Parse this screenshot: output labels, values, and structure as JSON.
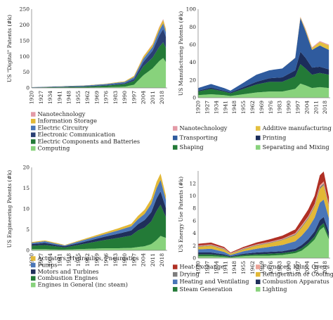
{
  "colors": {
    "nano": "#e39aa6",
    "storage": "#e2b836",
    "circuitry": "#4a76b8",
    "comm": "#2a3f73",
    "components": "#237a37",
    "computing": "#88d27c",
    "additive": "#e3bf3e",
    "transporting": "#2f5b9e",
    "printing": "#1b2d5a",
    "shaping": "#237a37",
    "separating": "#88d27c",
    "actuators": "#e2b836",
    "pumps": "#4a76b8",
    "motors": "#1f2f5a",
    "combustion": "#237a37",
    "engines": "#88d27c",
    "heat_exchange": "#b03024",
    "furnaces": "#eba397",
    "drying": "#7d7d7d",
    "refrigeration": "#e2b836",
    "heating": "#4a76b8",
    "combustion_app": "#1f2f5a",
    "steam": "#237a37",
    "lighting": "#88d27c"
  },
  "chart_data": [
    {
      "type": "area",
      "stacked": true,
      "ylabel": "US \"Digital\" Patents (#k)",
      "ylim": [
        0,
        250
      ],
      "yticks": [
        0,
        50,
        100,
        150,
        200,
        250
      ],
      "xlim": [
        1920,
        2022
      ],
      "xticks": [
        "1920",
        "1927",
        "1934",
        "1941",
        "1948",
        "1955",
        "1962",
        "1969",
        "1976",
        "1983",
        "1990",
        "1997",
        "2004",
        "2011",
        "2018"
      ],
      "legend_columns": 1,
      "series": [
        {
          "name": "Computing",
          "color_key": "computing",
          "x": [
            1920,
            1960,
            1975,
            1990,
            1997,
            2004,
            2011,
            2016,
            2019,
            2021
          ],
          "values": [
            0.3,
            1,
            2,
            4,
            10,
            40,
            62,
            85,
            95,
            82
          ]
        },
        {
          "name": "Electric Components and Batteries",
          "color_key": "components",
          "x": [
            1920,
            1960,
            1975,
            1990,
            1997,
            2004,
            2011,
            2016,
            2019,
            2021
          ],
          "values": [
            1,
            3,
            5,
            8,
            12,
            28,
            34,
            45,
            50,
            44
          ]
        },
        {
          "name": "Electronic Communication",
          "color_key": "comm",
          "x": [
            1920,
            1960,
            1975,
            1990,
            1997,
            2004,
            2011,
            2016,
            2019,
            2021
          ],
          "values": [
            0.5,
            1.5,
            2,
            3,
            6,
            14,
            22,
            36,
            42,
            36
          ]
        },
        {
          "name": "Electric Circuitry",
          "color_key": "circuitry",
          "x": [
            1920,
            1960,
            1975,
            1990,
            1997,
            2004,
            2011,
            2016,
            2019,
            2021
          ],
          "values": [
            0.5,
            2,
            3,
            4,
            6,
            10,
            12,
            16,
            18,
            15
          ]
        },
        {
          "name": "Information Storage",
          "color_key": "storage",
          "x": [
            1920,
            1960,
            1975,
            1990,
            1997,
            2004,
            2011,
            2016,
            2019,
            2021
          ],
          "values": [
            0.1,
            0.5,
            1,
            2,
            4,
            7,
            8,
            10,
            11,
            9
          ]
        },
        {
          "name": "Nanotechnology",
          "color_key": "nano",
          "x": [
            1920,
            1960,
            1975,
            1990,
            1997,
            2004,
            2011,
            2016,
            2019,
            2021
          ],
          "values": [
            0,
            0,
            0,
            0,
            0.2,
            1,
            1.5,
            2,
            2.5,
            2
          ]
        }
      ]
    },
    {
      "type": "area",
      "stacked": true,
      "ylabel": "US Manufacturing Patents (#k)",
      "ylim": [
        0,
        100
      ],
      "yticks": [
        0,
        20,
        40,
        60,
        80,
        100
      ],
      "xlim": [
        1920,
        2022
      ],
      "xticks": [
        "1920",
        "1927",
        "1934",
        "1941",
        "1948",
        "1955",
        "1962",
        "1969",
        "1976",
        "1983",
        "1990",
        "1997",
        "2004",
        "2011",
        "2018"
      ],
      "legend_columns": 2,
      "series": [
        {
          "name": "Separating and Mixing",
          "color_key": "separating",
          "x": [
            1920,
            1930,
            1940,
            1945,
            1955,
            1965,
            1975,
            1985,
            1995,
            1999,
            2003,
            2008,
            2014,
            2021
          ],
          "values": [
            3,
            4,
            3,
            2,
            4,
            6,
            7,
            7,
            10,
            16,
            14,
            11,
            12,
            11
          ]
        },
        {
          "name": "Shaping",
          "color_key": "shaping",
          "x": [
            1920,
            1930,
            1940,
            1945,
            1955,
            1965,
            1975,
            1985,
            1995,
            1999,
            2003,
            2008,
            2014,
            2021
          ],
          "values": [
            4,
            6,
            4,
            3,
            6,
            9,
            11,
            11,
            14,
            22,
            19,
            15,
            16,
            15
          ]
        },
        {
          "name": "Printing",
          "color_key": "printing",
          "x": [
            1920,
            1930,
            1940,
            1945,
            1955,
            1965,
            1975,
            1985,
            1995,
            1999,
            2003,
            2008,
            2014,
            2021
          ],
          "values": [
            1,
            1.5,
            1,
            1,
            2,
            3,
            4,
            5,
            7,
            14,
            12,
            8,
            7,
            6
          ]
        },
        {
          "name": "Transporting",
          "color_key": "transporting",
          "x": [
            1920,
            1930,
            1940,
            1945,
            1955,
            1965,
            1975,
            1985,
            1995,
            1999,
            2003,
            2008,
            2014,
            2021
          ],
          "values": [
            3,
            4,
            3,
            2,
            5,
            8,
            9,
            10,
            14,
            38,
            30,
            20,
            24,
            22
          ]
        },
        {
          "name": "Additive manufacturing",
          "color_key": "additive",
          "x": [
            1920,
            1930,
            1940,
            1945,
            1955,
            1965,
            1975,
            1985,
            1995,
            1999,
            2003,
            2008,
            2014,
            2021
          ],
          "values": [
            0,
            0,
            0,
            0,
            0,
            0,
            0,
            0,
            0.2,
            1,
            2,
            2,
            4,
            5
          ]
        },
        {
          "name": "Nanotechnology",
          "color_key": "nano",
          "x": [
            1920,
            1930,
            1940,
            1945,
            1955,
            1965,
            1975,
            1985,
            1995,
            1999,
            2003,
            2008,
            2014,
            2021
          ],
          "values": [
            0,
            0,
            0,
            0,
            0,
            0,
            0,
            0,
            0.1,
            0.5,
            1,
            1,
            1,
            1
          ]
        }
      ]
    },
    {
      "type": "area",
      "stacked": true,
      "ylabel": "US Engineering Patents (#k)",
      "ylim": [
        0,
        20
      ],
      "yticks": [
        0,
        5,
        10,
        15,
        20
      ],
      "xlim": [
        1920,
        2022
      ],
      "xticks": [
        "1920",
        "1927",
        "1934",
        "1941",
        "1948",
        "1955",
        "1962",
        "1969",
        "1976",
        "1983",
        "1990",
        "1997",
        "2004",
        "2011",
        "2018"
      ],
      "legend_columns": 1,
      "series": [
        {
          "name": "Engines in General (inc steam)",
          "color_key": "engines",
          "x": [
            1920,
            1930,
            1940,
            1945,
            1955,
            1965,
            1975,
            1985,
            1995,
            2000,
            2005,
            2010,
            2014,
            2017,
            2021
          ],
          "values": [
            0.3,
            0.3,
            0.2,
            0.2,
            0.3,
            0.4,
            0.5,
            0.5,
            0.6,
            0.8,
            1,
            1.5,
            2.5,
            3.5,
            3
          ]
        },
        {
          "name": "Combustion Engines",
          "color_key": "combustion",
          "x": [
            1920,
            1930,
            1940,
            1945,
            1955,
            1965,
            1975,
            1985,
            1995,
            2000,
            2005,
            2010,
            2014,
            2017,
            2021
          ],
          "values": [
            0.8,
            1,
            0.7,
            0.5,
            1,
            1.5,
            2,
            2.5,
            3,
            4,
            4.5,
            5.5,
            7,
            7.5,
            5
          ]
        },
        {
          "name": "Motors and Turbines",
          "color_key": "motors",
          "x": [
            1920,
            1930,
            1940,
            1945,
            1955,
            1965,
            1975,
            1985,
            1995,
            2000,
            2005,
            2010,
            2014,
            2017,
            2021
          ],
          "values": [
            0.4,
            0.5,
            0.3,
            0.3,
            0.4,
            0.6,
            0.8,
            1,
            1.2,
            1.5,
            1.8,
            2.2,
            3,
            3.2,
            2.2
          ]
        },
        {
          "name": "Pumps",
          "color_key": "pumps",
          "x": [
            1920,
            1930,
            1940,
            1945,
            1955,
            1965,
            1975,
            1985,
            1995,
            2000,
            2005,
            2010,
            2014,
            2017,
            2021
          ],
          "values": [
            0.3,
            0.4,
            0.3,
            0.2,
            0.4,
            0.5,
            0.6,
            0.8,
            1,
            1.2,
            1.5,
            2,
            2.5,
            2.8,
            2
          ]
        },
        {
          "name": "Actuators, Hydraulics, Pneumatics",
          "color_key": "actuators",
          "x": [
            1920,
            1930,
            1940,
            1945,
            1955,
            1965,
            1975,
            1985,
            1995,
            2000,
            2005,
            2010,
            2014,
            2017,
            2021
          ],
          "values": [
            0.2,
            0.2,
            0.2,
            0.1,
            0.2,
            0.3,
            0.4,
            0.5,
            0.6,
            0.8,
            1,
            1.2,
            1.5,
            1.5,
            1
          ]
        }
      ]
    },
    {
      "type": "area",
      "stacked": true,
      "ylabel": "US Energy Use Patents (#k)",
      "ylim": [
        0,
        14
      ],
      "yticks": [
        0,
        2,
        4,
        6,
        8,
        10,
        12
      ],
      "xlim": [
        1920,
        2022
      ],
      "xticks": [
        "1920",
        "1927",
        "1934",
        "1941",
        "1948",
        "1955",
        "1962",
        "1969",
        "1976",
        "1983",
        "1990",
        "1997",
        "2004",
        "2011",
        "2018"
      ],
      "legend_columns": 2,
      "series": [
        {
          "name": "Lighting",
          "color_key": "lighting",
          "x": [
            1920,
            1930,
            1940,
            1945,
            1955,
            1965,
            1975,
            1985,
            1995,
            2000,
            2005,
            2010,
            2014,
            2017,
            2021
          ],
          "values": [
            0.3,
            0.3,
            0.2,
            0.1,
            0.3,
            0.4,
            0.4,
            0.5,
            0.8,
            1.2,
            2,
            3,
            4.5,
            5,
            3
          ]
        },
        {
          "name": "Steam Generation",
          "color_key": "steam",
          "x": [
            1920,
            1930,
            1940,
            1945,
            1955,
            1965,
            1975,
            1985,
            1995,
            2000,
            2005,
            2010,
            2014,
            2017,
            2021
          ],
          "values": [
            0.3,
            0.3,
            0.2,
            0.1,
            0.2,
            0.2,
            0.3,
            0.3,
            0.3,
            0.4,
            0.4,
            0.5,
            0.6,
            0.6,
            0.4
          ]
        },
        {
          "name": "Combustion Apparatus",
          "color_key": "combustion_app",
          "x": [
            1920,
            1930,
            1940,
            1945,
            1955,
            1965,
            1975,
            1985,
            1995,
            2000,
            2005,
            2010,
            2014,
            2017,
            2021
          ],
          "values": [
            0.3,
            0.3,
            0.2,
            0.1,
            0.2,
            0.3,
            0.3,
            0.3,
            0.4,
            0.5,
            0.6,
            0.8,
            1,
            1,
            0.8
          ]
        },
        {
          "name": "Heating and Ventilating",
          "color_key": "heating",
          "x": [
            1920,
            1930,
            1940,
            1945,
            1955,
            1965,
            1975,
            1985,
            1995,
            2000,
            2005,
            2010,
            2014,
            2017,
            2021
          ],
          "values": [
            0.5,
            0.6,
            0.4,
            0.2,
            0.4,
            0.6,
            0.8,
            1,
            1.2,
            1.5,
            1.8,
            2.2,
            2.8,
            2.8,
            2.2
          ]
        },
        {
          "name": "Refrigeration or Cooling",
          "color_key": "refrigeration",
          "x": [
            1920,
            1930,
            1940,
            1945,
            1955,
            1965,
            1975,
            1985,
            1995,
            2000,
            2005,
            2010,
            2014,
            2017,
            2021
          ],
          "values": [
            0.4,
            0.5,
            0.4,
            0.2,
            0.3,
            0.5,
            0.6,
            0.8,
            1,
            1.3,
            1.5,
            1.8,
            2.2,
            2.3,
            1.8
          ]
        },
        {
          "name": "Drying",
          "color_key": "drying",
          "x": [
            1920,
            1930,
            1940,
            1945,
            1955,
            1965,
            1975,
            1985,
            1995,
            2000,
            2005,
            2010,
            2014,
            2017,
            2021
          ],
          "values": [
            0.1,
            0.1,
            0.1,
            0.05,
            0.1,
            0.1,
            0.1,
            0.1,
            0.15,
            0.2,
            0.2,
            0.2,
            0.3,
            0.3,
            0.2
          ]
        },
        {
          "name": "Furnaces, Kilns, Ovens",
          "color_key": "furnaces",
          "x": [
            1920,
            1930,
            1940,
            1945,
            1955,
            1965,
            1975,
            1985,
            1995,
            2000,
            2005,
            2010,
            2014,
            2017,
            2021
          ],
          "values": [
            0.1,
            0.1,
            0.1,
            0.05,
            0.1,
            0.1,
            0.1,
            0.1,
            0.15,
            0.2,
            0.2,
            0.2,
            0.3,
            0.3,
            0.2
          ]
        },
        {
          "name": "Heat-Exchange",
          "color_key": "heat_exchange",
          "x": [
            1920,
            1930,
            1940,
            1945,
            1955,
            1965,
            1975,
            1985,
            1995,
            2000,
            2005,
            2010,
            2014,
            2017,
            2021
          ],
          "values": [
            0.3,
            0.3,
            0.2,
            0.1,
            0.2,
            0.3,
            0.4,
            0.5,
            0.6,
            0.9,
            1.1,
            1.3,
            1.6,
            1.6,
            1.2
          ]
        }
      ]
    }
  ]
}
